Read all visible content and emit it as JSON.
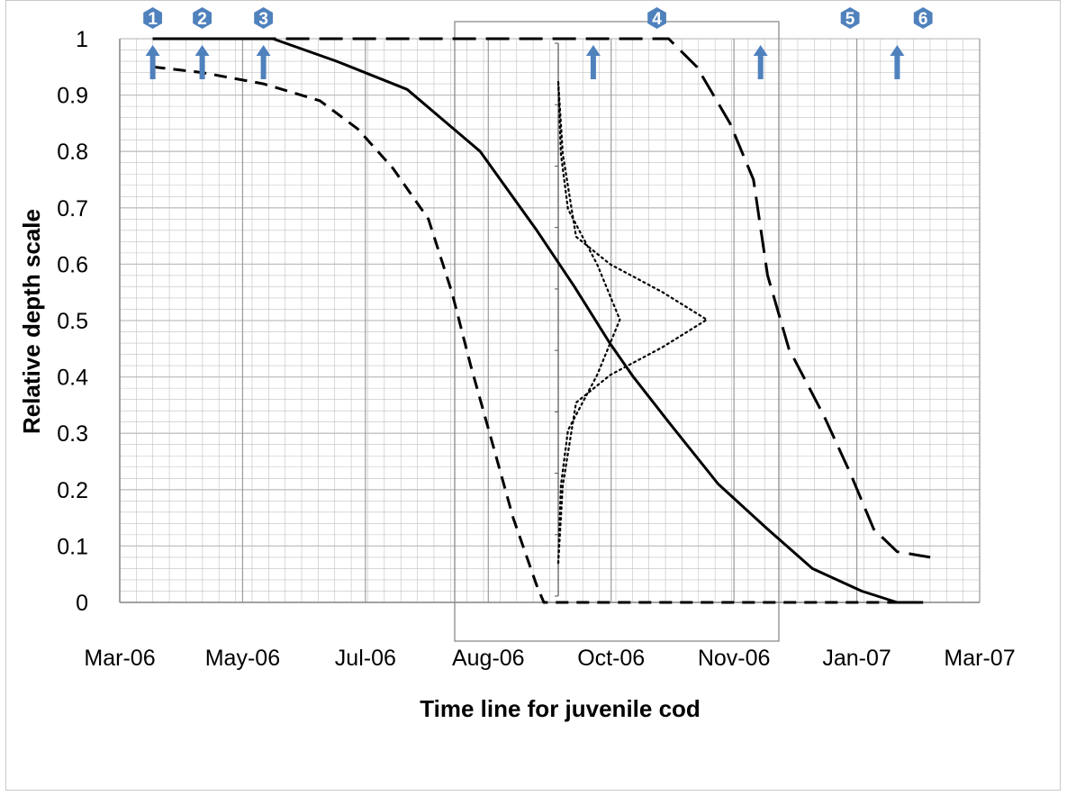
{
  "chart_data": {
    "type": "line",
    "title": "",
    "xlabel": "Time line for juvenile cod",
    "ylabel": "Relative depth scale",
    "x_ticks": [
      "Mar-06",
      "May-06",
      "Jul-06",
      "Aug-06",
      "Oct-06",
      "Nov-06",
      "Jan-07",
      "Mar-07"
    ],
    "y_ticks": [
      "0",
      "0.1",
      "0.2",
      "0.3",
      "0.4",
      "0.5",
      "0.6",
      "0.7",
      "0.8",
      "0.9",
      "1"
    ],
    "ylim": [
      0,
      1
    ],
    "xlim": [
      "2006-03-01",
      "2007-03-01"
    ],
    "grid": true,
    "legend": "none",
    "series": [
      {
        "style": "dashed",
        "points": [
          [
            "2006-03-15",
            0.95
          ],
          [
            "2006-04-05",
            0.94
          ],
          [
            "2006-05-01",
            0.92
          ],
          [
            "2006-05-25",
            0.89
          ],
          [
            "2006-06-10",
            0.84
          ],
          [
            "2006-06-25",
            0.77
          ],
          [
            "2006-07-10",
            0.68
          ],
          [
            "2006-07-20",
            0.55
          ],
          [
            "2006-07-28",
            0.42
          ],
          [
            "2006-08-05",
            0.3
          ],
          [
            "2006-08-15",
            0.15
          ],
          [
            "2006-08-25",
            0.03
          ],
          [
            "2006-08-28",
            0.0
          ],
          [
            "2006-09-10",
            0.0
          ],
          [
            "2006-11-25",
            0.0
          ],
          [
            "2007-02-05",
            0.0
          ]
        ]
      },
      {
        "style": "solid",
        "points": [
          [
            "2006-03-15",
            1.0
          ],
          [
            "2006-05-05",
            1.0
          ],
          [
            "2006-06-01",
            0.96
          ],
          [
            "2006-07-01",
            0.91
          ],
          [
            "2006-08-01",
            0.8
          ],
          [
            "2006-08-25",
            0.66
          ],
          [
            "2006-09-10",
            0.56
          ],
          [
            "2006-09-25",
            0.46
          ],
          [
            "2006-10-05",
            0.4
          ],
          [
            "2006-10-20",
            0.32
          ],
          [
            "2006-11-10",
            0.21
          ],
          [
            "2006-12-01",
            0.13
          ],
          [
            "2006-12-20",
            0.06
          ],
          [
            "2007-01-10",
            0.02
          ],
          [
            "2007-01-25",
            0.0
          ],
          [
            "2007-02-05",
            0.0
          ]
        ]
      },
      {
        "style": "long-dash",
        "points": [
          [
            "2006-03-15",
            1.0
          ],
          [
            "2006-09-01",
            1.0
          ],
          [
            "2006-10-20",
            1.0
          ],
          [
            "2006-11-01",
            0.95
          ],
          [
            "2006-11-15",
            0.85
          ],
          [
            "2006-11-25",
            0.75
          ],
          [
            "2006-12-01",
            0.58
          ],
          [
            "2006-12-10",
            0.45
          ],
          [
            "2006-12-25",
            0.33
          ],
          [
            "2007-01-05",
            0.23
          ],
          [
            "2007-01-15",
            0.13
          ],
          [
            "2007-01-25",
            0.09
          ],
          [
            "2007-02-08",
            0.08
          ]
        ]
      }
    ],
    "markers": [
      {
        "label": "1",
        "date": "2006-03-15"
      },
      {
        "label": "2",
        "date": "2006-04-05"
      },
      {
        "label": "3",
        "date": "2006-05-01"
      },
      {
        "label": "4",
        "date": "2006-10-15"
      },
      {
        "label": "5",
        "date": "2007-01-05"
      },
      {
        "label": "6",
        "date": "2007-02-05"
      }
    ],
    "arrows": [
      "2006-03-15",
      "2006-04-05",
      "2006-05-01",
      "2006-09-18",
      "2006-11-28",
      "2007-01-25"
    ],
    "inset": {
      "description": "distribution curves",
      "curves": [
        [
          [
            0.06,
            0.0
          ],
          [
            0.2,
            0.03
          ],
          [
            0.35,
            0.12
          ],
          [
            0.4,
            0.35
          ],
          [
            0.45,
            0.7
          ],
          [
            0.5,
            1.0
          ],
          [
            0.55,
            0.7
          ],
          [
            0.6,
            0.35
          ],
          [
            0.65,
            0.12
          ],
          [
            0.8,
            0.03
          ],
          [
            0.93,
            0.0
          ]
        ],
        [
          [
            0.06,
            0.0
          ],
          [
            0.2,
            0.04
          ],
          [
            0.3,
            0.15
          ],
          [
            0.4,
            0.6
          ],
          [
            0.5,
            0.95
          ],
          [
            0.6,
            0.6
          ],
          [
            0.7,
            0.15
          ],
          [
            0.8,
            0.04
          ],
          [
            0.93,
            0.0
          ]
        ]
      ]
    }
  },
  "marker_color": "#4f81bd",
  "arrow_color": "#4f81bd",
  "line_color": "#000000",
  "grid_color": "#c0c0c0"
}
